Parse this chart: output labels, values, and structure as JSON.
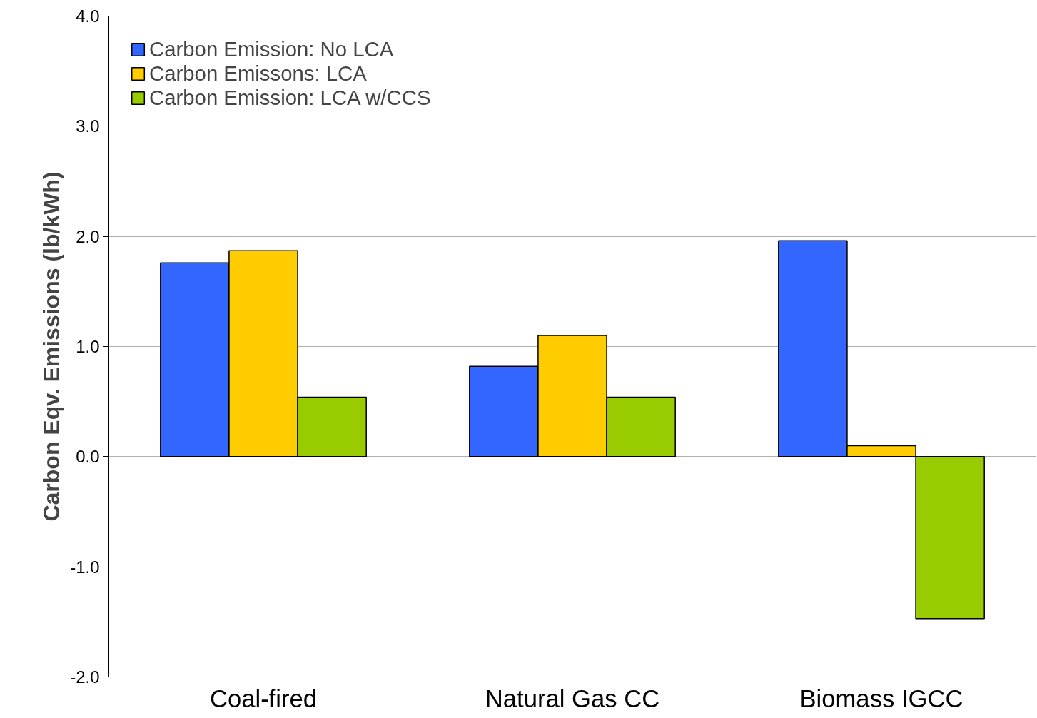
{
  "chart_data": {
    "type": "bar",
    "ylabel": "Carbon Eqv. Emissions (lb/kWh)",
    "categories": [
      "Coal-fired",
      "Natural Gas CC",
      "Biomass IGCC"
    ],
    "series": [
      {
        "name": "Carbon Emission: No LCA",
        "color": "#3366ff",
        "values": [
          1.76,
          0.82,
          1.96
        ]
      },
      {
        "name": "Carbon Emissons: LCA",
        "color": "#ffcc00",
        "values": [
          1.87,
          1.1,
          0.1
        ]
      },
      {
        "name": "Carbon Emission: LCA w/CCS",
        "color": "#99cc00",
        "values": [
          0.54,
          0.54,
          -1.47
        ]
      }
    ],
    "ylim": [
      -2.0,
      4.0
    ],
    "yticks": [
      {
        "value": -2,
        "label": "-2.0"
      },
      {
        "value": -1,
        "label": "-1.0"
      },
      {
        "value": 0,
        "label": "0.0"
      },
      {
        "value": 1,
        "label": "1.0"
      },
      {
        "value": 2,
        "label": "2.0"
      },
      {
        "value": 3,
        "label": "3.0"
      },
      {
        "value": 4,
        "label": "4.0"
      }
    ],
    "grid": true,
    "legend": "top left"
  }
}
